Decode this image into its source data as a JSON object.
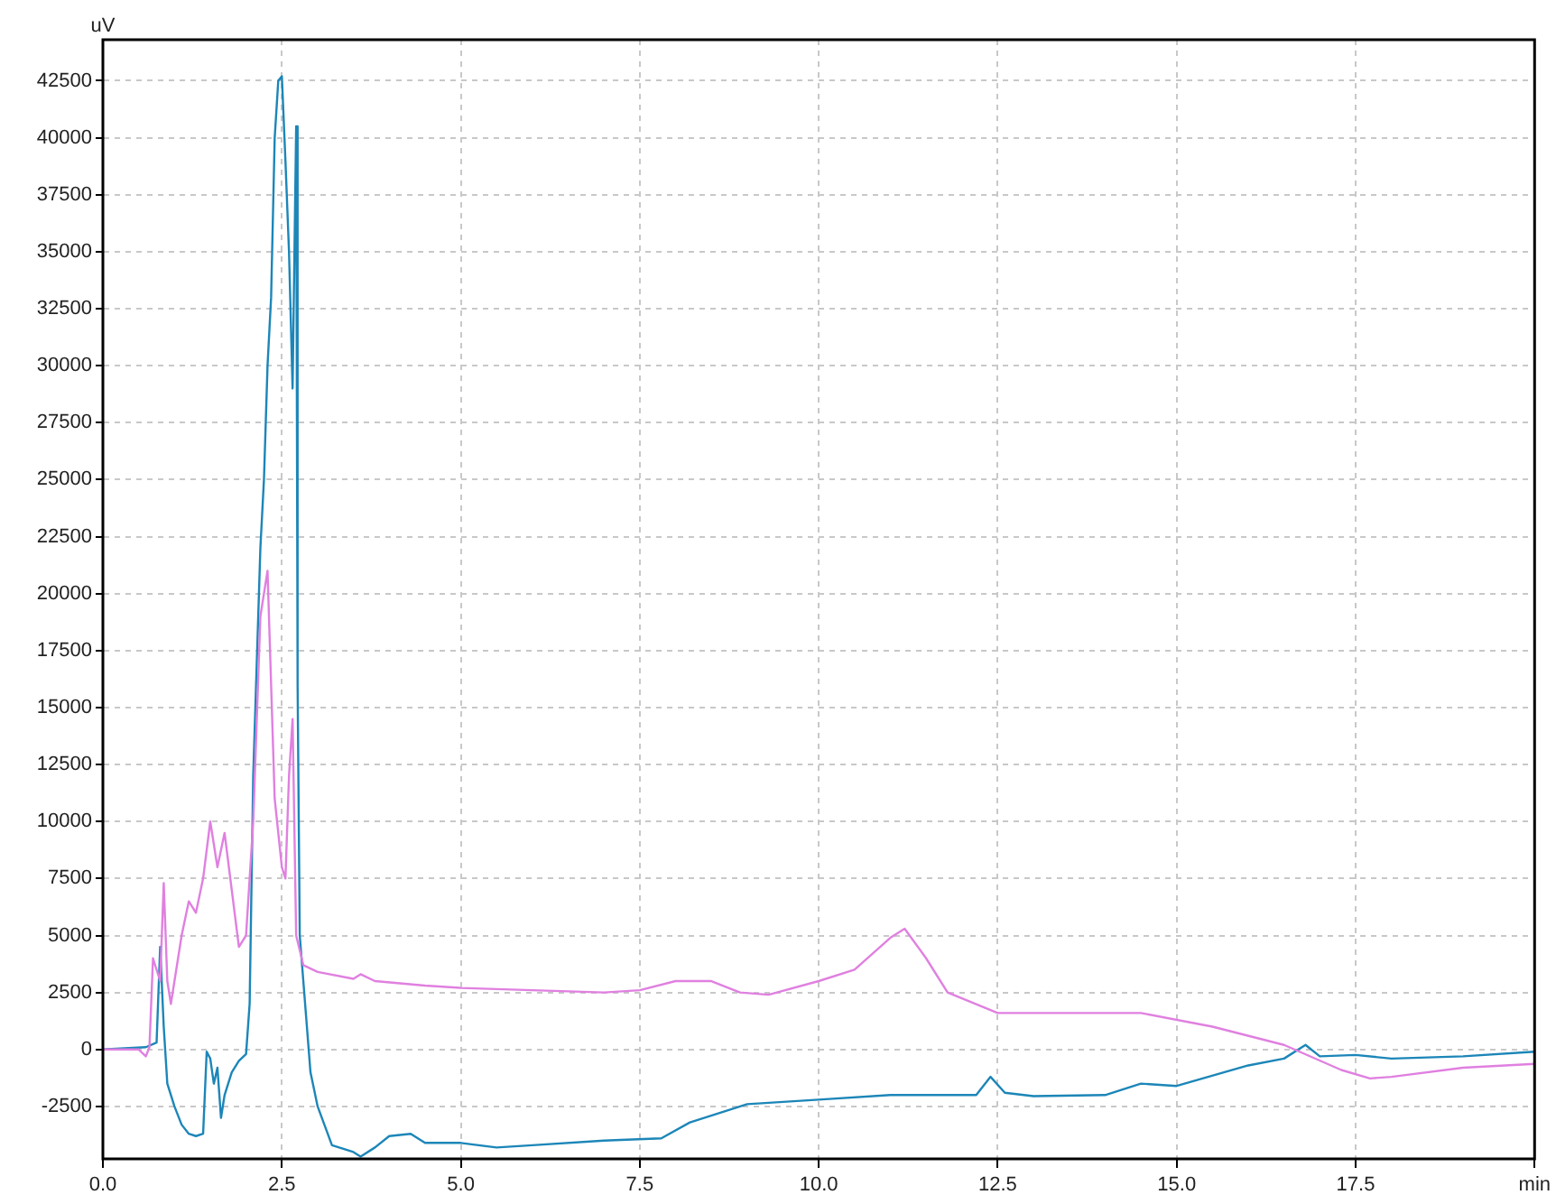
{
  "chart_data": {
    "type": "line",
    "ylabel": "uV",
    "xlim": [
      0,
      20
    ],
    "ylim": [
      -4800,
      44300
    ],
    "xticks": [
      {
        "value": 0,
        "label": "0.0"
      },
      {
        "value": 2.5,
        "label": "2.5"
      },
      {
        "value": 5,
        "label": "5.0"
      },
      {
        "value": 7.5,
        "label": "7.5"
      },
      {
        "value": 10,
        "label": "10.0"
      },
      {
        "value": 12.5,
        "label": "12.5"
      },
      {
        "value": 15,
        "label": "15.0"
      },
      {
        "value": 17.5,
        "label": "17.5"
      },
      {
        "value": 20,
        "label": "min"
      }
    ],
    "yticks": [
      -2500,
      0,
      2500,
      5000,
      7500,
      10000,
      12500,
      15000,
      17500,
      20000,
      22500,
      25000,
      27500,
      30000,
      32500,
      35000,
      37500,
      40000,
      42500
    ],
    "grid": true,
    "legend": false,
    "marker": "none",
    "line_style": "solid",
    "series": [
      {
        "color": "#e080e0",
        "x": [
          0,
          0.5,
          0.6,
          0.65,
          0.7,
          0.8,
          0.85,
          0.9,
          0.95,
          1.0,
          1.1,
          1.2,
          1.3,
          1.4,
          1.5,
          1.6,
          1.7,
          1.8,
          1.9,
          2.0,
          2.1,
          2.2,
          2.3,
          2.35,
          2.4,
          2.5,
          2.55,
          2.6,
          2.65,
          2.7,
          2.8,
          3.0,
          3.5,
          3.6,
          3.8,
          4.5,
          5,
          6,
          7,
          7.5,
          8,
          8.5,
          8.9,
          9.3,
          10,
          10.5,
          11,
          11.2,
          11.5,
          11.8,
          12.5,
          13.5,
          14.5,
          15.5,
          16.5,
          17.3,
          17.7,
          18,
          19,
          20
        ],
        "values": [
          0,
          0,
          -300,
          100,
          4000,
          3000,
          7300,
          3000,
          2000,
          3000,
          5000,
          6500,
          6000,
          7500,
          10000,
          8000,
          9500,
          7000,
          4500,
          5000,
          10000,
          19000,
          21000,
          16000,
          11000,
          8000,
          7500,
          12000,
          14500,
          5000,
          3700,
          3400,
          3100,
          3300,
          3000,
          2800,
          2700,
          2600,
          2500,
          2600,
          3000,
          3000,
          2500,
          2400,
          3000,
          3500,
          4900,
          5300,
          4000,
          2500,
          1600,
          1600,
          1600,
          1000,
          200,
          -900,
          -1270,
          -1200,
          -800,
          -630
        ]
      },
      {
        "color": "#1c86b8",
        "x": [
          0,
          0.6,
          0.75,
          0.8,
          0.85,
          0.9,
          1.0,
          1.1,
          1.2,
          1.3,
          1.4,
          1.45,
          1.5,
          1.55,
          1.6,
          1.65,
          1.7,
          1.8,
          1.9,
          2.0,
          2.05,
          2.1,
          2.2,
          2.25,
          2.3,
          2.35,
          2.4,
          2.45,
          2.5,
          2.55,
          2.6,
          2.65,
          2.7,
          2.72,
          2.75,
          2.9,
          3.0,
          3.2,
          3.5,
          3.6,
          3.8,
          4.0,
          4.3,
          4.5,
          5.0,
          5.5,
          6,
          7,
          7.8,
          8.2,
          9,
          10,
          11,
          12.2,
          12.4,
          12.6,
          13,
          14,
          14.5,
          15,
          16,
          16.5,
          16.8,
          17,
          17.5,
          18,
          19,
          20
        ],
        "values": [
          0,
          100,
          300,
          4500,
          1000,
          -1500,
          -2500,
          -3300,
          -3700,
          -3800,
          -3700,
          -100,
          -400,
          -1500,
          -800,
          -3000,
          -2000,
          -1000,
          -500,
          -200,
          2000,
          12000,
          22000,
          25000,
          30000,
          33000,
          40000,
          42500,
          42700,
          39000,
          35000,
          29000,
          40500,
          16000,
          5000,
          -1000,
          -2500,
          -4200,
          -4500,
          -4700,
          -4300,
          -3800,
          -3700,
          -4100,
          -4100,
          -4300,
          -4200,
          -4000,
          -3900,
          -3200,
          -2400,
          -2200,
          -2000,
          -2000,
          -1200,
          -1900,
          -2050,
          -2000,
          -1500,
          -1600,
          -700,
          -400,
          200,
          -300,
          -240,
          -400,
          -300,
          -100
        ]
      }
    ]
  }
}
